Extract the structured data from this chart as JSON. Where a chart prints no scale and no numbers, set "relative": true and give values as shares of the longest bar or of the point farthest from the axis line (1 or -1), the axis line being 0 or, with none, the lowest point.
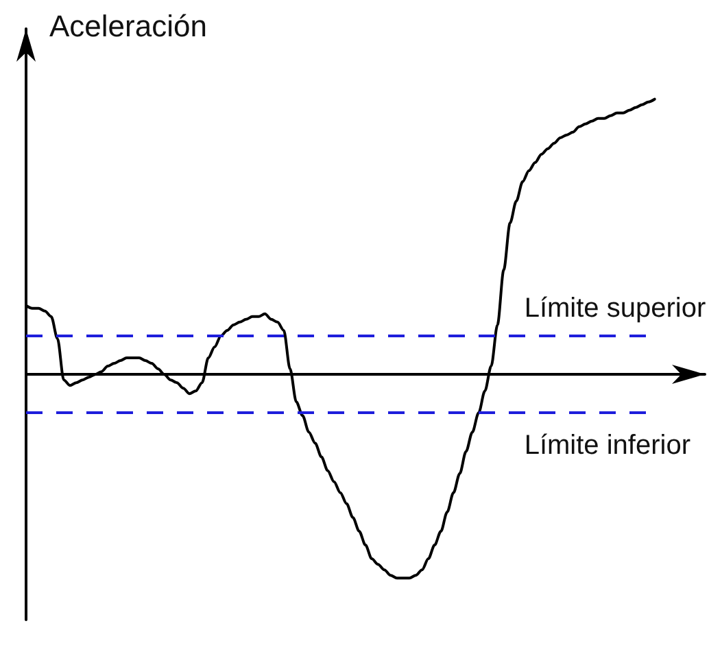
{
  "chart_data": {
    "type": "line",
    "ylabel": "Aceleración",
    "relative": true,
    "marker": "none",
    "line_style": "solid",
    "categories": [
      null,
      null,
      null,
      null,
      null,
      null,
      null,
      null,
      null,
      null,
      null,
      null,
      null,
      null,
      null,
      null,
      null,
      null,
      null,
      null,
      null,
      null,
      null,
      null,
      null,
      null,
      null,
      null,
      null,
      null,
      null,
      null,
      null,
      null,
      null,
      null,
      null,
      null,
      null,
      null,
      null,
      null,
      null,
      null,
      null,
      null,
      null,
      null,
      null,
      null,
      null,
      null,
      null,
      null,
      null,
      null,
      null,
      null,
      null,
      null,
      null,
      null,
      null,
      null,
      null,
      null,
      null,
      null,
      null,
      null,
      null,
      null,
      null,
      null,
      null,
      null,
      null,
      null,
      null,
      null,
      null,
      null,
      null,
      null,
      null,
      null,
      null,
      null,
      null,
      null,
      null,
      null,
      null,
      null,
      null,
      null,
      null,
      null,
      null,
      null,
      null,
      null,
      null,
      null,
      null,
      null,
      null,
      null,
      null
    ],
    "series": [
      {
        "color": "#000000",
        "values": [
          0.25,
          0.24,
          0.24,
          0.23,
          0.21,
          0.13,
          -0.02,
          -0.04,
          -0.03,
          -0.02,
          -0.01,
          0,
          0.01,
          0.03,
          0.04,
          0.05,
          0.06,
          0.06,
          0.06,
          0.05,
          0.04,
          0.02,
          0,
          -0.02,
          -0.03,
          -0.05,
          -0.07,
          -0.06,
          -0.03,
          0.06,
          0.1,
          0.14,
          0.16,
          0.18,
          0.19,
          0.2,
          0.21,
          0.21,
          0.22,
          0.2,
          0.19,
          0.16,
          0.02,
          -0.1,
          -0.15,
          -0.21,
          -0.25,
          -0.3,
          -0.35,
          -0.39,
          -0.43,
          -0.47,
          -0.52,
          -0.57,
          -0.62,
          -0.67,
          -0.69,
          -0.71,
          -0.73,
          -0.74,
          -0.74,
          -0.74,
          -0.73,
          -0.71,
          -0.67,
          -0.62,
          -0.57,
          -0.5,
          -0.43,
          -0.36,
          -0.28,
          -0.21,
          -0.14,
          -0.06,
          0.03,
          0.18,
          0.38,
          0.55,
          0.63,
          0.7,
          0.74,
          0.77,
          0.8,
          0.82,
          0.84,
          0.86,
          0.87,
          0.88,
          0.9,
          0.91,
          0.92,
          0.93,
          0.93,
          0.94,
          0.95,
          0.95,
          0.96,
          0.97,
          0.98,
          0.99,
          1,
          null,
          null,
          null,
          null,
          null,
          null,
          null,
          null
        ]
      }
    ],
    "ref_lines": [
      {
        "axis": "y",
        "value": 0.14,
        "label": "Límite superior",
        "color": "#1e1edc",
        "line_style": "dashed"
      },
      {
        "axis": "y",
        "value": -0.14,
        "label": "Límite inferior",
        "color": "#1e1edc",
        "line_style": "dashed"
      }
    ]
  }
}
